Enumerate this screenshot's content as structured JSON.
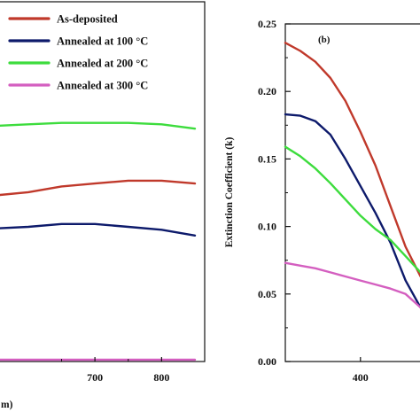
{
  "colors": {
    "as_deposited": "#c0392b",
    "annealed_100": "#0d1a6b",
    "annealed_200": "#3ddc3d",
    "annealed_300": "#d45fc0"
  },
  "chart_data": [
    {
      "type": "line",
      "panel": "a",
      "xlabel": "m)",
      "xlim": [
        555,
        850
      ],
      "x_ticks": [
        700,
        800
      ],
      "x_tick_labels": [
        "700",
        "800"
      ],
      "legend": {
        "placement": "top",
        "entries": [
          {
            "label": "As-deposited",
            "color_key": "as_deposited"
          },
          {
            "label": "Annealed at 100 °C",
            "color_key": "annealed_100"
          },
          {
            "label": "Annealed at 200 °C",
            "color_key": "annealed_200"
          },
          {
            "label": "Annealed at 300 °C",
            "color_key": "annealed_300"
          }
        ]
      },
      "series": [
        {
          "name": "As-deposited",
          "color_key": "as_deposited",
          "x": [
            555,
            600,
            650,
            700,
            750,
            800,
            850
          ],
          "y": [
            0.57,
            0.58,
            0.6,
            0.61,
            0.62,
            0.62,
            0.61
          ]
        },
        {
          "name": "Annealed at 100 °C",
          "color_key": "annealed_100",
          "x": [
            555,
            600,
            650,
            700,
            750,
            800,
            850
          ],
          "y": [
            0.455,
            0.46,
            0.47,
            0.47,
            0.46,
            0.45,
            0.43
          ]
        },
        {
          "name": "Annealed at 200 °C",
          "color_key": "annealed_200",
          "x": [
            555,
            600,
            650,
            700,
            750,
            800,
            850
          ],
          "y": [
            0.81,
            0.815,
            0.82,
            0.82,
            0.82,
            0.815,
            0.8
          ]
        },
        {
          "name": "Annealed at 300 °C",
          "color_key": "annealed_300",
          "x": [
            555,
            600,
            650,
            700,
            750,
            800,
            850
          ],
          "y": [
            0.0,
            0.0,
            0.0,
            0.0,
            0.0,
            0.0,
            0.0
          ]
        }
      ]
    },
    {
      "type": "line",
      "panel": "b",
      "panel_label": "(b)",
      "ylabel": "Extinction Coefficient (k)",
      "xlim": [
        350,
        450
      ],
      "ylim": [
        0.0,
        0.25
      ],
      "x_ticks": [
        400
      ],
      "x_tick_labels": [
        "400"
      ],
      "y_ticks": [
        0.0,
        0.05,
        0.1,
        0.15,
        0.2,
        0.25
      ],
      "y_tick_labels": [
        "0.00",
        "0.05",
        "0.10",
        "0.15",
        "0.20",
        "0.25"
      ],
      "series": [
        {
          "name": "As-deposited",
          "color_key": "as_deposited",
          "x": [
            350,
            360,
            370,
            380,
            390,
            400,
            410,
            420,
            430,
            440,
            450
          ],
          "y": [
            0.236,
            0.23,
            0.222,
            0.21,
            0.193,
            0.17,
            0.145,
            0.115,
            0.085,
            0.063,
            0.054
          ]
        },
        {
          "name": "Annealed at 100 °C",
          "color_key": "annealed_100",
          "x": [
            350,
            360,
            370,
            380,
            390,
            400,
            410,
            420,
            430,
            440,
            450
          ],
          "y": [
            0.183,
            0.182,
            0.178,
            0.168,
            0.15,
            0.13,
            0.11,
            0.088,
            0.06,
            0.04,
            0.035
          ]
        },
        {
          "name": "Annealed at 200 °C",
          "color_key": "annealed_200",
          "x": [
            350,
            360,
            370,
            380,
            390,
            400,
            410,
            420,
            430,
            440,
            450
          ],
          "y": [
            0.159,
            0.152,
            0.143,
            0.132,
            0.12,
            0.108,
            0.098,
            0.09,
            0.078,
            0.066,
            0.06
          ]
        },
        {
          "name": "Annealed at 300 °C",
          "color_key": "annealed_300",
          "x": [
            350,
            360,
            370,
            380,
            390,
            400,
            410,
            420,
            430,
            440,
            450
          ],
          "y": [
            0.073,
            0.071,
            0.069,
            0.066,
            0.063,
            0.06,
            0.057,
            0.054,
            0.05,
            0.04,
            0.025
          ]
        }
      ]
    }
  ]
}
